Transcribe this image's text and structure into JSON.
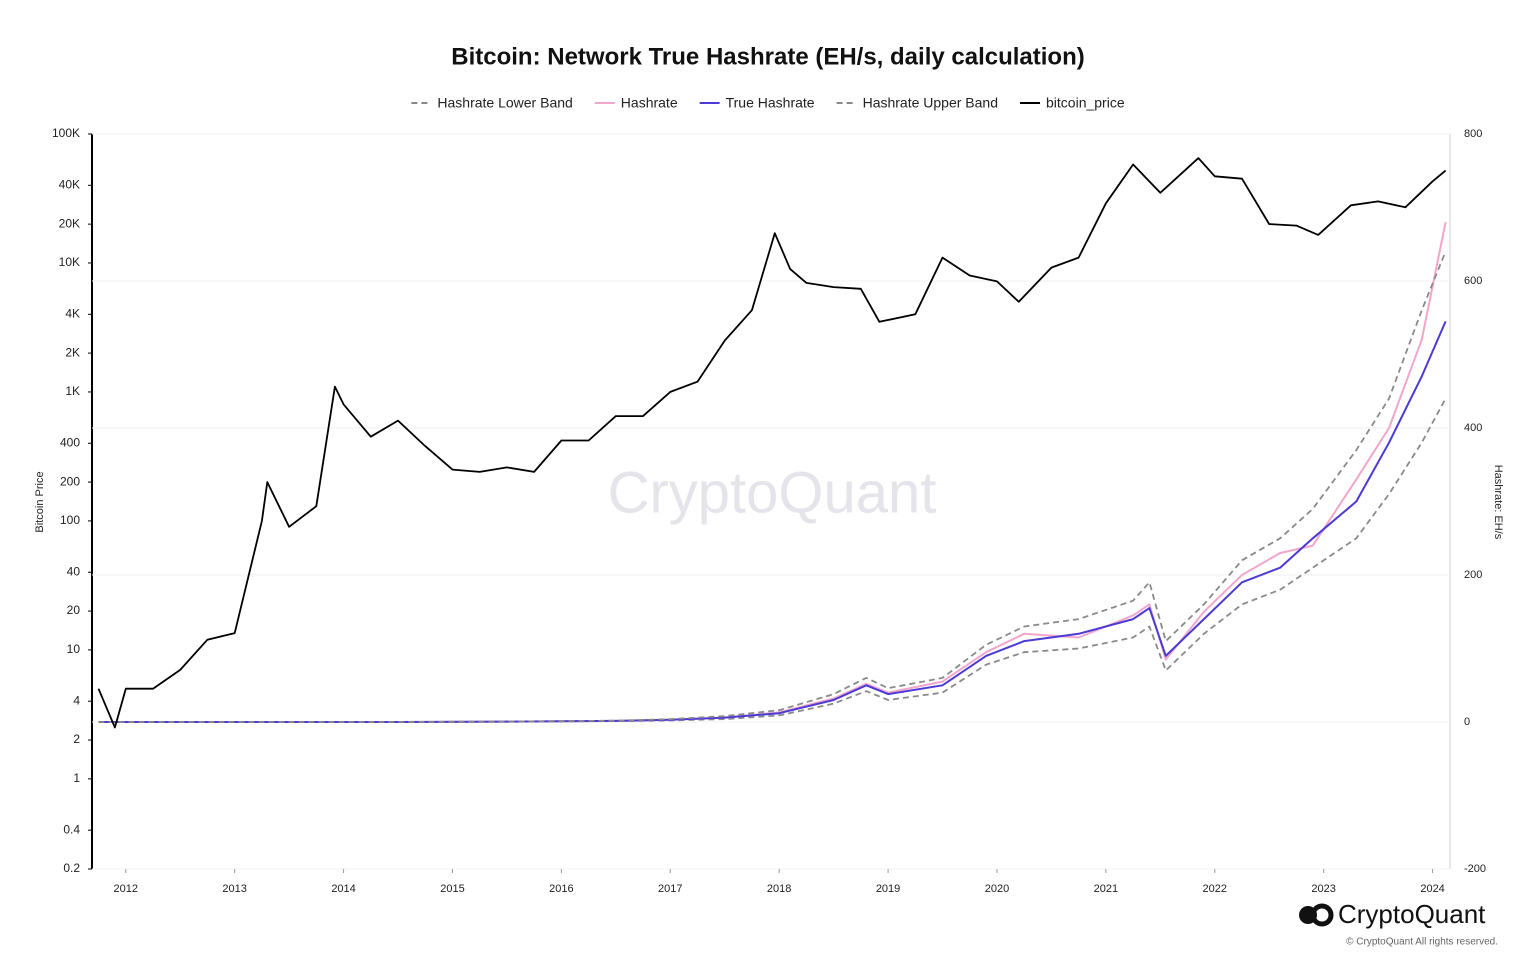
{
  "chart_data": {
    "type": "line",
    "title": "Bitcoin: Network True Hashrate (EH/s, daily calculation)",
    "ylabel": "Bitcoin Price",
    "y2label": "Hashrate: EH/s",
    "watermark": "CryptoQuant",
    "logo": "CryptoQuant",
    "copyright": "© CryptoQuant All rights reserved.",
    "log_scale": true,
    "grid": true,
    "legend": "top",
    "xlim": [
      2011.69,
      2024.16
    ],
    "xticks": [
      2012,
      2013,
      2014,
      2015,
      2016,
      2017,
      2018,
      2019,
      2020,
      2021,
      2022,
      2023,
      2024
    ],
    "ylim": [
      0.2,
      100000
    ],
    "yticks": [
      {
        "value": 100000,
        "label": "100K"
      },
      {
        "value": 40000,
        "label": "40K"
      },
      {
        "value": 20000,
        "label": "20K"
      },
      {
        "value": 10000,
        "label": "10K"
      },
      {
        "value": 4000,
        "label": "4K"
      },
      {
        "value": 2000,
        "label": "2K"
      },
      {
        "value": 1000,
        "label": "1K"
      },
      400,
      200,
      100,
      40,
      20,
      10,
      4,
      2,
      1,
      0.4,
      0.2
    ],
    "y2lim": [
      -200,
      800
    ],
    "y2ticks": [
      -200,
      0,
      200,
      400,
      600,
      800
    ],
    "series": [
      {
        "name": "Hashrate Lower Band",
        "color": "#8a8a8a",
        "dash": true,
        "axis": "y2",
        "x": [
          2011.75,
          2012.5,
          2013.5,
          2014.5,
          2015.5,
          2016.5,
          2017.0,
          2017.5,
          2018.0,
          2018.5,
          2018.8,
          2019.0,
          2019.5,
          2019.9,
          2020.25,
          2020.75,
          2021.25,
          2021.4,
          2021.55,
          2021.9,
          2022.25,
          2022.6,
          2022.9,
          2023.3,
          2023.6,
          2023.9,
          2024.12
        ],
        "values": [
          0,
          0,
          0,
          0,
          0.4,
          1.2,
          2,
          4,
          9,
          25,
          42,
          30,
          40,
          78,
          95,
          100,
          115,
          130,
          70,
          120,
          160,
          180,
          210,
          250,
          310,
          380,
          440
        ]
      },
      {
        "name": "Hashrate",
        "color": "#f2a6cc",
        "dash": false,
        "axis": "y2",
        "x": [
          2011.75,
          2012.5,
          2013.5,
          2014.5,
          2015.5,
          2016.5,
          2017.0,
          2017.5,
          2018.0,
          2018.5,
          2018.8,
          2019.0,
          2019.5,
          2019.9,
          2020.25,
          2020.75,
          2021.25,
          2021.4,
          2021.55,
          2021.9,
          2022.25,
          2022.6,
          2022.9,
          2023.3,
          2023.6,
          2023.9,
          2024.12
        ],
        "values": [
          0,
          0,
          0,
          0,
          0.5,
          1.5,
          3,
          6,
          13,
          32,
          52,
          40,
          55,
          95,
          120,
          115,
          145,
          160,
          85,
          150,
          200,
          230,
          240,
          330,
          400,
          520,
          680
        ]
      },
      {
        "name": "True Hashrate",
        "color": "#4b3ad6",
        "dash": false,
        "axis": "y2",
        "x": [
          2011.75,
          2012.5,
          2013.5,
          2014.5,
          2015.5,
          2016.5,
          2017.0,
          2017.5,
          2018.0,
          2018.5,
          2018.8,
          2019.0,
          2019.5,
          2019.9,
          2020.25,
          2020.75,
          2021.25,
          2021.4,
          2021.55,
          2021.9,
          2022.25,
          2022.6,
          2022.9,
          2023.3,
          2023.6,
          2023.9,
          2024.12
        ],
        "values": [
          0,
          0,
          0,
          0,
          0.5,
          1.5,
          3,
          6,
          12,
          30,
          50,
          38,
          50,
          90,
          110,
          120,
          140,
          155,
          90,
          140,
          190,
          210,
          250,
          300,
          380,
          470,
          545
        ]
      },
      {
        "name": "Hashrate Upper Band",
        "color": "#8a8a8a",
        "dash": true,
        "axis": "y2",
        "x": [
          2011.75,
          2012.5,
          2013.5,
          2014.5,
          2015.5,
          2016.5,
          2017.0,
          2017.5,
          2018.0,
          2018.5,
          2018.8,
          2019.0,
          2019.5,
          2019.9,
          2020.25,
          2020.75,
          2021.25,
          2021.4,
          2021.55,
          2021.9,
          2022.25,
          2022.6,
          2022.9,
          2023.3,
          2023.6,
          2023.9,
          2024.12
        ],
        "values": [
          0,
          0,
          0,
          0,
          0.6,
          1.8,
          4,
          8,
          16,
          38,
          60,
          46,
          60,
          105,
          130,
          140,
          165,
          190,
          110,
          160,
          220,
          250,
          290,
          370,
          440,
          560,
          640
        ]
      },
      {
        "name": "bitcoin_price",
        "color": "#000000",
        "dash": false,
        "axis": "y",
        "x": [
          2011.75,
          2011.9,
          2012.0,
          2012.25,
          2012.5,
          2012.75,
          2013.0,
          2013.25,
          2013.3,
          2013.5,
          2013.75,
          2013.92,
          2014.0,
          2014.25,
          2014.5,
          2014.75,
          2015.0,
          2015.25,
          2015.5,
          2015.75,
          2016.0,
          2016.25,
          2016.5,
          2016.75,
          2017.0,
          2017.25,
          2017.5,
          2017.75,
          2017.96,
          2018.1,
          2018.25,
          2018.5,
          2018.75,
          2018.92,
          2019.25,
          2019.5,
          2019.75,
          2020.0,
          2020.2,
          2020.5,
          2020.75,
          2021.0,
          2021.25,
          2021.5,
          2021.85,
          2022.0,
          2022.25,
          2022.5,
          2022.75,
          2022.95,
          2023.25,
          2023.5,
          2023.75,
          2024.0,
          2024.12
        ],
        "values": [
          5,
          2.5,
          5,
          5,
          7,
          12,
          13.5,
          100,
          200,
          90,
          130,
          1100,
          800,
          450,
          600,
          380,
          250,
          240,
          260,
          240,
          420,
          420,
          650,
          650,
          1000,
          1200,
          2500,
          4300,
          17000,
          9000,
          7000,
          6500,
          6300,
          3500,
          4000,
          11000,
          8000,
          7200,
          5000,
          9200,
          11000,
          29000,
          58000,
          35000,
          65000,
          47000,
          45000,
          20000,
          19500,
          16500,
          28000,
          30000,
          27000,
          43000,
          52000
        ]
      }
    ]
  }
}
